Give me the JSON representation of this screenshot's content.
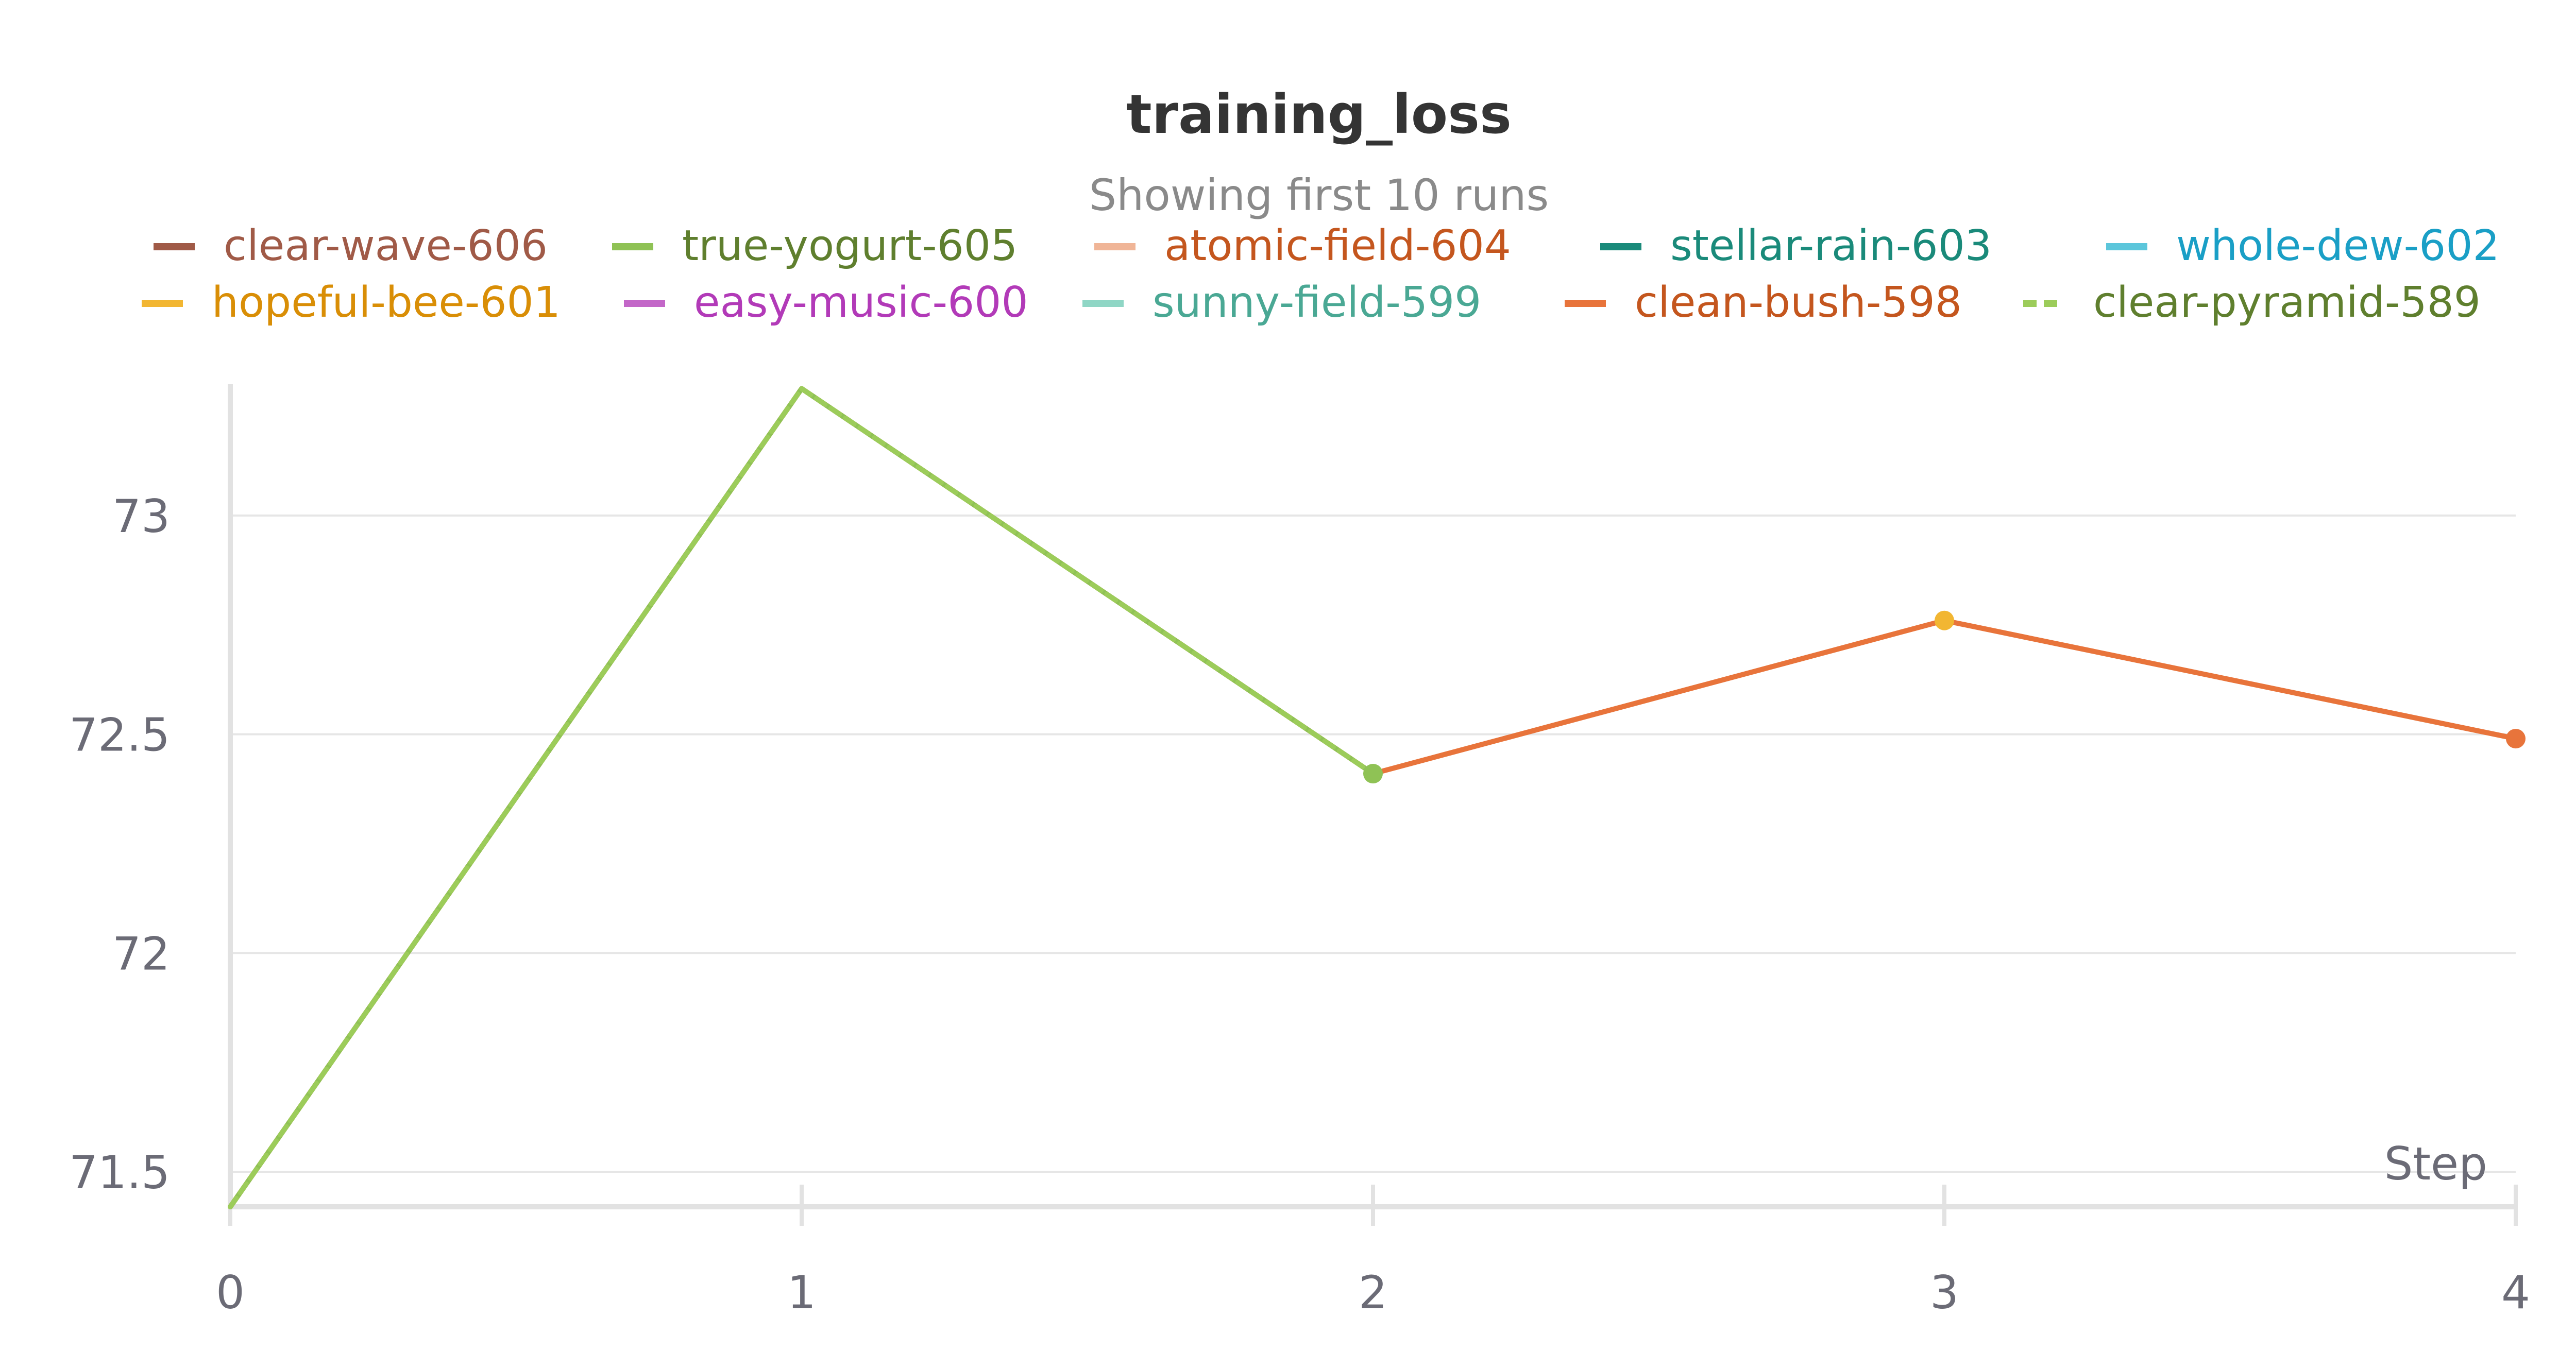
{
  "chart_data": {
    "type": "line",
    "title": "training_loss",
    "subtitle": "Showing first 10 runs",
    "xlabel": "Step",
    "ylabel": "",
    "xlim": [
      0,
      4
    ],
    "ylim": [
      71.42,
      73.3
    ],
    "x_ticks": [
      0,
      1,
      2,
      3,
      4
    ],
    "y_ticks": [
      71.5,
      72,
      72.5,
      73
    ],
    "grid": true,
    "legend_position": "top",
    "series": [
      {
        "name": "clear-wave-606",
        "color": "#a05a47",
        "text_color": "#a05a47",
        "dash": "solid",
        "x": [],
        "y": []
      },
      {
        "name": "true-yogurt-605",
        "color": "#8fc255",
        "text_color": "#5f7f2e",
        "dash": "solid",
        "x": [
          0,
          1,
          2
        ],
        "y": [
          71.42,
          73.29,
          72.41
        ]
      },
      {
        "name": "atomic-field-604",
        "color": "#f0b597",
        "text_color": "#c4561e",
        "dash": "solid",
        "x": [],
        "y": []
      },
      {
        "name": "stellar-rain-603",
        "color": "#1a8a7a",
        "text_color": "#1a8a7a",
        "dash": "solid",
        "x": [],
        "y": []
      },
      {
        "name": "whole-dew-602",
        "color": "#5cc6db",
        "text_color": "#1a9fc6",
        "dash": "solid",
        "x": [],
        "y": []
      },
      {
        "name": "hopeful-bee-601",
        "color": "#f2b632",
        "text_color": "#d98e06",
        "dash": "solid",
        "x": [
          3
        ],
        "y": [
          72.76
        ]
      },
      {
        "name": "easy-music-600",
        "color": "#c367c8",
        "text_color": "#b23ab8",
        "dash": "solid",
        "x": [],
        "y": []
      },
      {
        "name": "sunny-field-599",
        "color": "#8fd6c5",
        "text_color": "#4aa894",
        "dash": "solid",
        "x": [],
        "y": []
      },
      {
        "name": "clean-bush-598",
        "color": "#e8743b",
        "text_color": "#c4561e",
        "dash": "solid",
        "x": [
          0,
          1,
          2,
          3,
          4
        ],
        "y": [
          71.42,
          73.29,
          72.41,
          72.76,
          72.49
        ]
      },
      {
        "name": "clear-pyramid-589",
        "color": "#9ccc5a",
        "text_color": "#5f7f2e",
        "dash": "dashed",
        "x": [
          0,
          1,
          2
        ],
        "y": [
          71.42,
          73.29,
          72.41
        ]
      }
    ]
  }
}
